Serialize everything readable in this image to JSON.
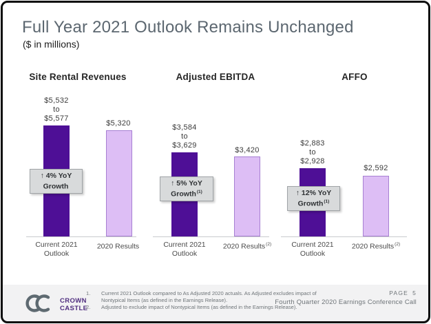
{
  "slide": {
    "title": "Full Year 2021 Outlook Remains Unchanged",
    "subtitle": "($ in millions)"
  },
  "chart_data": {
    "type": "bar",
    "units": "USD millions",
    "value_axis": "none (data labels only)",
    "baseline": 0,
    "categories": [
      "Current 2021 Outlook",
      "2020 Results"
    ],
    "groups": [
      {
        "title": "Site Rental Revenues",
        "outlook": {
          "range_low": 5532,
          "range_high": 5577,
          "range_mid": 5554.5,
          "label_low": "$5,532",
          "label_to": "to",
          "label_high": "$5,577",
          "x_line1": "Current 2021",
          "x_line2": "Outlook"
        },
        "results": {
          "value": 5320,
          "label": "$5,320",
          "x_line1": "2020 Results",
          "x_sup": ""
        },
        "badge": {
          "line1": "↑ 4% YoY",
          "line2": "Growth",
          "sup": ""
        }
      },
      {
        "title": "Adjusted EBITDA",
        "outlook": {
          "range_low": 3584,
          "range_high": 3629,
          "range_mid": 3606.5,
          "label_low": "$3,584",
          "label_to": "to",
          "label_high": "$3,629",
          "x_line1": "Current 2021",
          "x_line2": "Outlook"
        },
        "results": {
          "value": 3420,
          "label": "$3,420",
          "x_line1": "2020 Results",
          "x_sup": "(2)"
        },
        "badge": {
          "line1": "↑ 5% YoY",
          "line2": "Growth",
          "sup": "(1)"
        }
      },
      {
        "title": "AFFO",
        "outlook": {
          "range_low": 2883,
          "range_high": 2928,
          "range_mid": 2905.5,
          "label_low": "$2,883",
          "label_to": "to",
          "label_high": "$2,928",
          "x_line1": "Current 2021",
          "x_line2": "Outlook"
        },
        "results": {
          "value": 2592,
          "label": "$2,592",
          "x_line1": "2020 Results",
          "x_sup": "(2)"
        },
        "badge": {
          "line1": "↑ 12% YoY",
          "line2": "Growth",
          "sup": "(1)"
        }
      }
    ],
    "colors": {
      "outlook_bar": "#4E0F96",
      "results_bar_fill": "#DDBEF5",
      "results_bar_border": "#A67FD2",
      "badge_bg": "#D8DADB",
      "title_text": "#5C6770",
      "logo_purple": "#4F2D7F",
      "logo_gray": "#5E6A71"
    }
  },
  "footer": {
    "logo": {
      "icon": "crown-castle-interlocked-cc",
      "line1": "CROWN",
      "line2": "CASTLE"
    },
    "footnotes": [
      {
        "num": "1.",
        "text": "Current 2021 Outlook compared to As Adjusted 2020 actuals. As Adjusted excludes impact of Nontypical Items (as defined in the Earnings Release)."
      },
      {
        "num": "2.",
        "text": "Adjusted to exclude impact of Nontypical Items (as defined in the Earnings Release)."
      }
    ],
    "page_label": "PAGE",
    "page_number": "5",
    "caption": "Fourth Quarter 2020 Earnings Conference Call"
  }
}
